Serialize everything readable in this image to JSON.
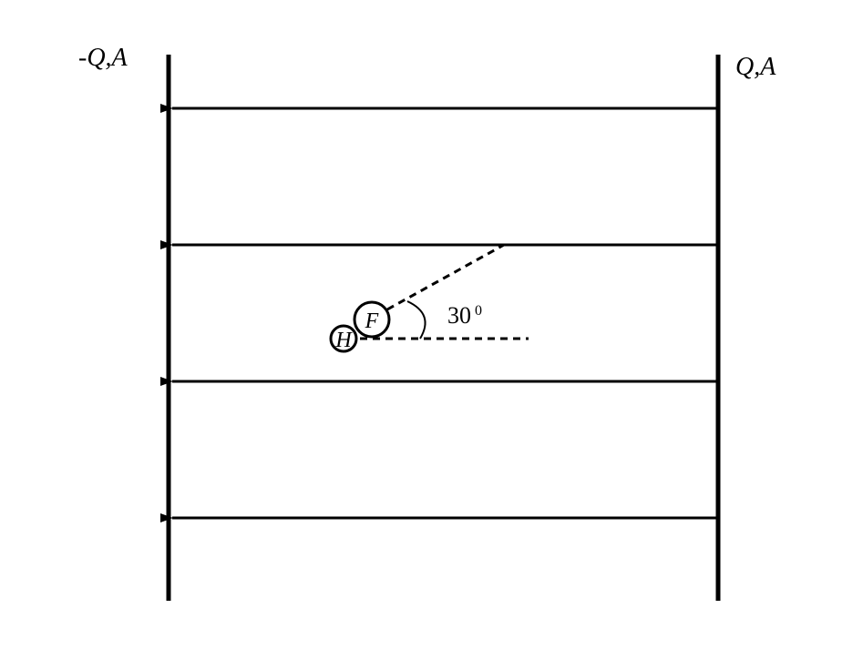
{
  "diagram": {
    "left_plate_label": "-Q,A",
    "right_plate_label": "Q,A",
    "molecule": {
      "atom_small": "H",
      "atom_large": "F"
    },
    "angle": {
      "value": "30",
      "superscript": "0"
    }
  },
  "colors": {
    "ink": "#000000",
    "background": "#ffffff"
  }
}
